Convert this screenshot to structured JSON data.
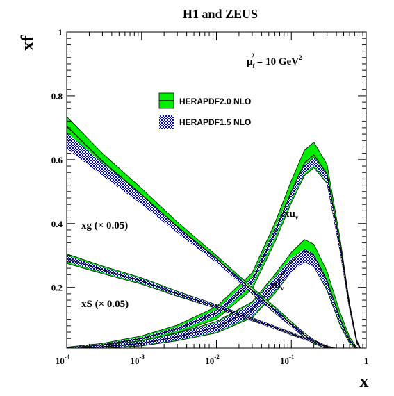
{
  "chart_data": {
    "type": "line",
    "title": "H1 and ZEUS",
    "xlabel": "x",
    "ylabel": "xf",
    "xscale": "log",
    "xlim": [
      0.0001,
      1
    ],
    "ylim": [
      0.01,
      1
    ],
    "xticks": [
      {
        "mant": "10",
        "exp": "-4"
      },
      {
        "mant": "10",
        "exp": "-3"
      },
      {
        "mant": "10",
        "exp": "-2"
      },
      {
        "mant": "10",
        "exp": "-1"
      },
      {
        "mant": "1",
        "exp": ""
      }
    ],
    "yticks": [
      "0.2",
      "0.4",
      "0.6",
      "0.8",
      "1"
    ],
    "scale_label": {
      "mu": "μ",
      "sub": "f",
      "sup1": "2",
      "rest": " = 10 GeV",
      "sup2": "2"
    },
    "legend_position": "top-center",
    "legend": [
      "HERAPDF2.0 NLO",
      "HERAPDF1.5 NLO"
    ],
    "colors": {
      "herapdf20": "#00ee00",
      "herapdf15": "#0000cc",
      "line": "#000000"
    },
    "curve_labels": {
      "xg": "xg (× 0.05)",
      "xs": "xS (× 0.05)",
      "xuv": {
        "main": "xu",
        "sub": "v"
      },
      "xdv": {
        "main": "xd",
        "sub": "v"
      }
    },
    "series": [
      {
        "id": "xuv",
        "x": [
          0.0001,
          0.0003,
          0.001,
          0.003,
          0.01,
          0.03,
          0.06,
          0.1,
          0.15,
          0.2,
          0.3,
          0.45,
          0.6,
          0.75,
          0.85
        ],
        "herapdf20": {
          "y": [
            0.01,
            0.02,
            0.04,
            0.07,
            0.12,
            0.22,
            0.37,
            0.5,
            0.59,
            0.615,
            0.555,
            0.33,
            0.14,
            0.03,
            0.005
          ],
          "err": [
            0.003,
            0.005,
            0.008,
            0.012,
            0.02,
            0.026,
            0.03,
            0.035,
            0.04,
            0.04,
            0.03,
            0.02,
            0.01,
            0.005,
            0.002
          ]
        },
        "herapdf15": {
          "y": [
            0.01,
            0.02,
            0.04,
            0.07,
            0.12,
            0.22,
            0.37,
            0.49,
            0.57,
            0.595,
            0.54,
            0.32,
            0.135,
            0.03,
            0.005
          ],
          "err": [
            0.002,
            0.003,
            0.004,
            0.006,
            0.01,
            0.013,
            0.015,
            0.015,
            0.013,
            0.013,
            0.012,
            0.01,
            0.006,
            0.003,
            0.002
          ]
        }
      },
      {
        "id": "xdv",
        "x": [
          0.0001,
          0.0003,
          0.001,
          0.003,
          0.01,
          0.03,
          0.06,
          0.1,
          0.15,
          0.2,
          0.3,
          0.45,
          0.6,
          0.75,
          0.85
        ],
        "herapdf20": {
          "y": [
            0.008,
            0.014,
            0.025,
            0.045,
            0.075,
            0.13,
            0.21,
            0.28,
            0.315,
            0.3,
            0.22,
            0.1,
            0.035,
            0.008,
            0.002
          ],
          "err": [
            0.003,
            0.005,
            0.008,
            0.012,
            0.018,
            0.025,
            0.03,
            0.03,
            0.035,
            0.035,
            0.03,
            0.02,
            0.01,
            0.004,
            0.002
          ]
        },
        "herapdf15": {
          "y": [
            0.008,
            0.014,
            0.025,
            0.045,
            0.075,
            0.13,
            0.21,
            0.27,
            0.3,
            0.285,
            0.21,
            0.095,
            0.033,
            0.008,
            0.002
          ],
          "err": [
            0.002,
            0.004,
            0.006,
            0.01,
            0.015,
            0.02,
            0.022,
            0.022,
            0.02,
            0.02,
            0.015,
            0.01,
            0.005,
            0.003,
            0.002
          ]
        }
      },
      {
        "id": "xg",
        "x": [
          0.0001,
          0.0003,
          0.001,
          0.003,
          0.01,
          0.03,
          0.06,
          0.1,
          0.15,
          0.2,
          0.3,
          0.45,
          0.6
        ],
        "herapdf20": {
          "y": [
            0.705,
            0.595,
            0.49,
            0.39,
            0.29,
            0.19,
            0.13,
            0.085,
            0.05,
            0.03,
            0.012,
            0.004,
            0.001
          ],
          "err": [
            0.03,
            0.025,
            0.02,
            0.015,
            0.01,
            0.01,
            0.01,
            0.008,
            0.007,
            0.006,
            0.004,
            0.002,
            0.001
          ]
        },
        "herapdf15": {
          "y": [
            0.66,
            0.57,
            0.475,
            0.38,
            0.285,
            0.188,
            0.128,
            0.083,
            0.05,
            0.03,
            0.012,
            0.004,
            0.001
          ],
          "err": [
            0.025,
            0.02,
            0.015,
            0.01,
            0.008,
            0.007,
            0.007,
            0.006,
            0.005,
            0.004,
            0.003,
            0.002,
            0.001
          ]
        }
      },
      {
        "id": "xs",
        "x": [
          0.0001,
          0.0003,
          0.001,
          0.003,
          0.01,
          0.03,
          0.06,
          0.1,
          0.15,
          0.2,
          0.3,
          0.45,
          0.6
        ],
        "herapdf20": {
          "y": [
            0.29,
            0.255,
            0.22,
            0.18,
            0.14,
            0.1,
            0.075,
            0.055,
            0.04,
            0.03,
            0.015,
            0.005,
            0.001
          ],
          "err": [
            0.015,
            0.012,
            0.01,
            0.008,
            0.006,
            0.005,
            0.004,
            0.004,
            0.003,
            0.003,
            0.002,
            0.001,
            0.001
          ]
        },
        "herapdf15": {
          "y": [
            0.29,
            0.255,
            0.22,
            0.18,
            0.14,
            0.1,
            0.075,
            0.055,
            0.04,
            0.03,
            0.015,
            0.005,
            0.001
          ],
          "err": [
            0.01,
            0.008,
            0.007,
            0.006,
            0.005,
            0.004,
            0.004,
            0.003,
            0.003,
            0.003,
            0.002,
            0.001,
            0.001
          ]
        }
      }
    ]
  }
}
